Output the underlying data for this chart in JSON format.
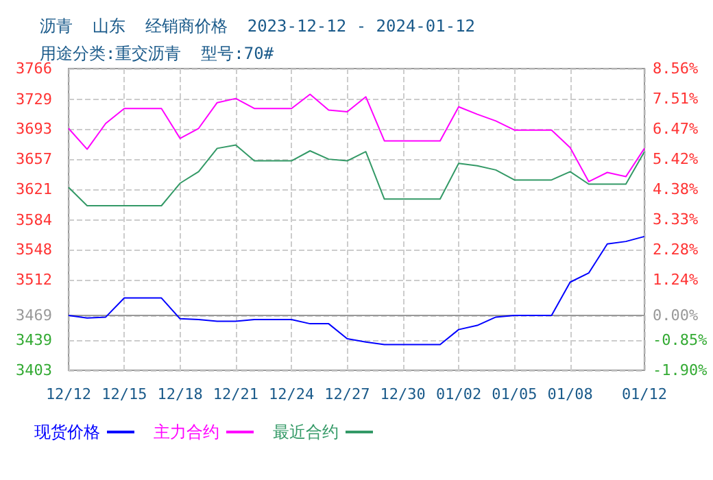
{
  "chart_data": {
    "type": "line",
    "title": "沥青  山东  经销商价格  2023-12-12 - 2024-01-12",
    "subtitle": "用途分类:重交沥青  型号:70#",
    "x": [
      "2023-12-12",
      "2023-12-13",
      "2023-12-14",
      "2023-12-15",
      "2023-12-16",
      "2023-12-17",
      "2023-12-18",
      "2023-12-19",
      "2023-12-20",
      "2023-12-21",
      "2023-12-22",
      "2023-12-23",
      "2023-12-24",
      "2023-12-25",
      "2023-12-26",
      "2023-12-27",
      "2023-12-28",
      "2023-12-29",
      "2023-12-30",
      "2023-12-31",
      "2024-01-01",
      "2024-01-02",
      "2024-01-03",
      "2024-01-04",
      "2024-01-05",
      "2024-01-06",
      "2024-01-07",
      "2024-01-08",
      "2024-01-09",
      "2024-01-10",
      "2024-01-11",
      "2024-01-12"
    ],
    "series": [
      {
        "name": "现货价格",
        "color": "#0000ff",
        "values": [
          3469,
          3466,
          3467,
          3490,
          3490,
          3490,
          3465,
          3464,
          3462,
          3462,
          3464,
          3464,
          3464,
          3459,
          3459,
          3441,
          3437,
          3434,
          3434,
          3434,
          3434,
          3452,
          3457,
          3467,
          3469,
          3469,
          3469,
          3509,
          3520,
          3555,
          3558,
          3564
        ]
      },
      {
        "name": "主力合约",
        "color": "#ff00ff",
        "values": [
          3694,
          3669,
          3700,
          3718,
          3718,
          3718,
          3682,
          3694,
          3725,
          3730,
          3718,
          3718,
          3718,
          3735,
          3716,
          3714,
          3732,
          3679,
          3679,
          3679,
          3679,
          3720,
          3711,
          3703,
          3692,
          3692,
          3692,
          3671,
          3630,
          3641,
          3636,
          3670
        ]
      },
      {
        "name": "最近合约",
        "color": "#339966",
        "values": [
          3623,
          3601,
          3601,
          3601,
          3601,
          3601,
          3628,
          3642,
          3670,
          3674,
          3655,
          3655,
          3655,
          3667,
          3657,
          3655,
          3666,
          3609,
          3609,
          3609,
          3609,
          3652,
          3649,
          3644,
          3632,
          3632,
          3632,
          3642,
          3627,
          3627,
          3627,
          3666
        ]
      }
    ],
    "xlim": [
      "2023-12-12",
      "2024-01-12"
    ],
    "xticks": [
      {
        "value": "2023-12-12",
        "label": "12/12"
      },
      {
        "value": "2023-12-15",
        "label": "12/15"
      },
      {
        "value": "2023-12-18",
        "label": "12/18"
      },
      {
        "value": "2023-12-21",
        "label": "12/21"
      },
      {
        "value": "2023-12-24",
        "label": "12/24"
      },
      {
        "value": "2023-12-27",
        "label": "12/27"
      },
      {
        "value": "2023-12-30",
        "label": "12/30"
      },
      {
        "value": "2024-01-02",
        "label": "01/02"
      },
      {
        "value": "2024-01-05",
        "label": "01/05"
      },
      {
        "value": "2024-01-08",
        "label": "01/08"
      },
      {
        "value": "2024-01-12",
        "label": "01/12"
      }
    ],
    "ylim": [
      3403,
      3766
    ],
    "yticks": [
      3403,
      3439,
      3469,
      3512,
      3548,
      3584,
      3621,
      3657,
      3693,
      3729,
      3766
    ],
    "y2lim": [
      -1.9,
      8.56
    ],
    "y2ticks": [
      {
        "value": -1.9,
        "label": "-1.90%"
      },
      {
        "value": -0.85,
        "label": "-0.85%"
      },
      {
        "value": 0,
        "label": "0.00%"
      },
      {
        "value": 1.24,
        "label": "1.24%"
      },
      {
        "value": 2.28,
        "label": "2.28%"
      },
      {
        "value": 3.33,
        "label": "3.33%"
      },
      {
        "value": 4.38,
        "label": "4.38%"
      },
      {
        "value": 5.42,
        "label": "5.42%"
      },
      {
        "value": 6.47,
        "label": "6.47%"
      },
      {
        "value": 7.51,
        "label": "7.51%"
      },
      {
        "value": 8.56,
        "label": "8.56%"
      }
    ],
    "ref_lines": [
      {
        "axis": "y",
        "value": 3469,
        "color": "#999999",
        "line_style": "solid"
      }
    ],
    "grid": true,
    "legend": "bottom left",
    "marker": "none",
    "line_style": "solid"
  }
}
